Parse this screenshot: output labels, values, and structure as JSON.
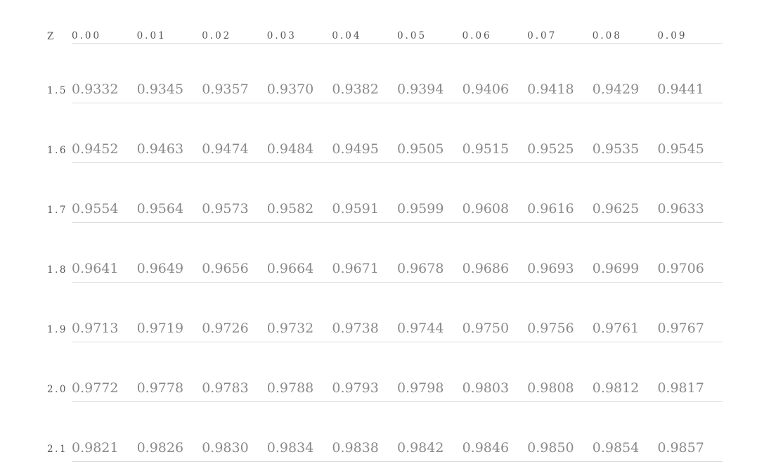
{
  "chart_data": {
    "type": "table",
    "corner_label": "Z",
    "columns": [
      "0.00",
      "0.01",
      "0.02",
      "0.03",
      "0.04",
      "0.05",
      "0.06",
      "0.07",
      "0.08",
      "0.09"
    ],
    "rows": [
      {
        "z": "1.5",
        "values": [
          "0.9332",
          "0.9345",
          "0.9357",
          "0.9370",
          "0.9382",
          "0.9394",
          "0.9406",
          "0.9418",
          "0.9429",
          "0.9441"
        ]
      },
      {
        "z": "1.6",
        "values": [
          "0.9452",
          "0.9463",
          "0.9474",
          "0.9484",
          "0.9495",
          "0.9505",
          "0.9515",
          "0.9525",
          "0.9535",
          "0.9545"
        ]
      },
      {
        "z": "1.7",
        "values": [
          "0.9554",
          "0.9564",
          "0.9573",
          "0.9582",
          "0.9591",
          "0.9599",
          "0.9608",
          "0.9616",
          "0.9625",
          "0.9633"
        ]
      },
      {
        "z": "1.8",
        "values": [
          "0.9641",
          "0.9649",
          "0.9656",
          "0.9664",
          "0.9671",
          "0.9678",
          "0.9686",
          "0.9693",
          "0.9699",
          "0.9706"
        ]
      },
      {
        "z": "1.9",
        "values": [
          "0.9713",
          "0.9719",
          "0.9726",
          "0.9732",
          "0.9738",
          "0.9744",
          "0.9750",
          "0.9756",
          "0.9761",
          "0.9767"
        ]
      },
      {
        "z": "2.0",
        "values": [
          "0.9772",
          "0.9778",
          "0.9783",
          "0.9788",
          "0.9793",
          "0.9798",
          "0.9803",
          "0.9808",
          "0.9812",
          "0.9817"
        ]
      },
      {
        "z": "2.1",
        "values": [
          "0.9821",
          "0.9826",
          "0.9830",
          "0.9834",
          "0.9838",
          "0.9842",
          "0.9846",
          "0.9850",
          "0.9854",
          "0.9857"
        ]
      }
    ],
    "layout": {
      "grid": "horizontal separator lines under header and under each row, spanning value columns only",
      "legend": "none",
      "title": ""
    },
    "colors": {
      "header_text": "#565656",
      "value_text": "#8a8a8a",
      "separator_line": "#dcdcdc",
      "background": "#ffffff"
    }
  }
}
